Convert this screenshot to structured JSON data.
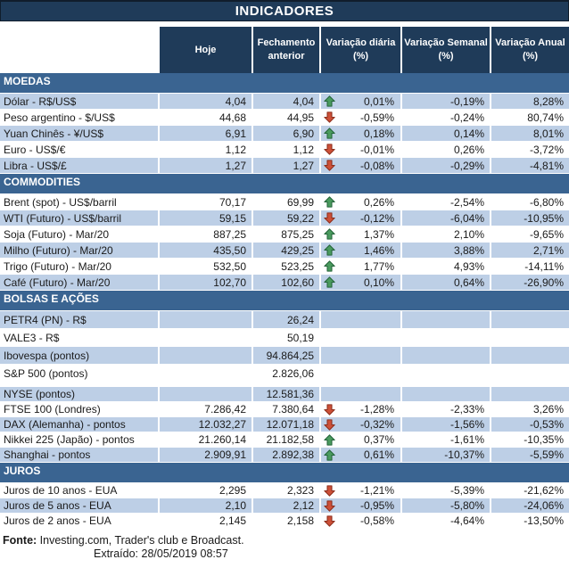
{
  "title": "INDICADORES",
  "columns": [
    "Hoje",
    "Fechamento anterior",
    "Variação diária (%)",
    "Variação Semanal (%)",
    "Variação Anual (%)"
  ],
  "colors": {
    "header_navy": "#1f3b59",
    "section_band_blue": "#3a6491",
    "row_stripe_blue": "#bdcfe6",
    "up_arrow_green": "#4a9b5e",
    "down_arrow_red": "#cd5038"
  },
  "sections": [
    {
      "label": "MOEDAS",
      "rows": [
        {
          "label": "Dólar - R$/US$",
          "hoje": "4,04",
          "fech": "4,04",
          "arrow": "up",
          "dia": "0,01%",
          "sem": "-0,19%",
          "anu": "8,28%",
          "shade": true
        },
        {
          "label": "Peso argentino - $/US$",
          "hoje": "44,68",
          "fech": "44,95",
          "arrow": "down",
          "dia": "-0,59%",
          "sem": "-0,24%",
          "anu": "80,74%",
          "shade": false
        },
        {
          "label": "Yuan Chinês - ¥/US$",
          "hoje": "6,91",
          "fech": "6,90",
          "arrow": "up",
          "dia": "0,18%",
          "sem": "0,14%",
          "anu": "8,01%",
          "shade": true
        },
        {
          "label": "Euro - US$/€",
          "hoje": "1,12",
          "fech": "1,12",
          "arrow": "down",
          "dia": "-0,01%",
          "sem": "0,26%",
          "anu": "-3,72%",
          "shade": false
        },
        {
          "label": "Libra - US$/£",
          "hoje": "1,27",
          "fech": "1,27",
          "arrow": "down",
          "dia": "-0,08%",
          "sem": "-0,29%",
          "anu": "-4,81%",
          "shade": true
        }
      ]
    },
    {
      "label": "COMMODITIES",
      "rows": [
        {
          "label": "Brent (spot) - US$/barril",
          "hoje": "70,17",
          "fech": "69,99",
          "arrow": "up",
          "dia": "0,26%",
          "sem": "-2,54%",
          "anu": "-6,80%",
          "shade": false
        },
        {
          "label": "WTI (Futuro) - US$/barril",
          "hoje": "59,15",
          "fech": "59,22",
          "arrow": "down",
          "dia": "-0,12%",
          "sem": "-6,04%",
          "anu": "-10,95%",
          "shade": true
        },
        {
          "label": "Soja (Futuro) - Mar/20",
          "hoje": "887,25",
          "fech": "875,25",
          "arrow": "up",
          "dia": "1,37%",
          "sem": "2,10%",
          "anu": "-9,65%",
          "shade": false
        },
        {
          "label": "Milho (Futuro) - Mar/20",
          "hoje": "435,50",
          "fech": "429,25",
          "arrow": "up",
          "dia": "1,46%",
          "sem": "3,88%",
          "anu": "2,71%",
          "shade": true
        },
        {
          "label": "Trigo (Futuro) - Mar/20",
          "hoje": "532,50",
          "fech": "523,25",
          "arrow": "up",
          "dia": "1,77%",
          "sem": "4,93%",
          "anu": "-14,11%",
          "shade": false
        },
        {
          "label": "Café (Futuro) - Mar/20",
          "hoje": "102,70",
          "fech": "102,60",
          "arrow": "up",
          "dia": "0,10%",
          "sem": "0,64%",
          "anu": "-26,90%",
          "shade": true
        }
      ]
    },
    {
      "label": "BOLSAS E AÇÕES",
      "rows": [
        {
          "label": "PETR4 (PN) - R$",
          "hoje": "",
          "fech": "26,24",
          "arrow": "",
          "dia": "",
          "sem": "",
          "anu": "",
          "shade": true,
          "tall": true
        },
        {
          "label": "VALE3 - R$",
          "hoje": "",
          "fech": "50,19",
          "arrow": "",
          "dia": "",
          "sem": "",
          "anu": "",
          "shade": false,
          "tall": true
        },
        {
          "label": "Ibovespa (pontos)",
          "hoje": "",
          "fech": "94.864,25",
          "arrow": "",
          "dia": "",
          "sem": "",
          "anu": "",
          "shade": true,
          "tall": true
        },
        {
          "label": "S&P 500 (pontos)",
          "hoje": "",
          "fech": "2.826,06",
          "arrow": "",
          "dia": "",
          "sem": "",
          "anu": "",
          "shade": false,
          "tall": true,
          "gap_below": true
        },
        {
          "label": "NYSE (pontos)",
          "hoje": "",
          "fech": "12.581,36",
          "arrow": "",
          "dia": "",
          "sem": "",
          "anu": "",
          "shade": true,
          "compact": true
        },
        {
          "label": "FTSE 100 (Londres)",
          "hoje": "7.286,42",
          "fech": "7.380,64",
          "arrow": "down",
          "dia": "-1,28%",
          "sem": "-2,33%",
          "anu": "3,26%",
          "shade": false,
          "compact": true
        },
        {
          "label": "DAX (Alemanha) - pontos",
          "hoje": "12.032,27",
          "fech": "12.071,18",
          "arrow": "down",
          "dia": "-0,32%",
          "sem": "-1,56%",
          "anu": "-0,53%",
          "shade": true,
          "compact": true
        },
        {
          "label": "Nikkei 225 (Japão) - pontos",
          "hoje": "21.260,14",
          "fech": "21.182,58",
          "arrow": "up",
          "dia": "0,37%",
          "sem": "-1,61%",
          "anu": "-10,35%",
          "shade": false,
          "compact": true
        },
        {
          "label": "Shanghai - pontos",
          "hoje": "2.909,91",
          "fech": "2.892,38",
          "arrow": "up",
          "dia": "0,61%",
          "sem": "-10,37%",
          "anu": "-5,59%",
          "shade": true,
          "compact": true
        }
      ]
    },
    {
      "label": "JUROS",
      "rows": [
        {
          "label": "Juros de 10 anos - EUA",
          "hoje": "2,295",
          "fech": "2,323",
          "arrow": "down",
          "dia": "-1,21%",
          "sem": "-5,39%",
          "anu": "-21,62%",
          "shade": false,
          "compact": true
        },
        {
          "label": "Juros de 5 anos - EUA",
          "hoje": "2,10",
          "fech": "2,12",
          "arrow": "down",
          "dia": "-0,95%",
          "sem": "-5,80%",
          "anu": "-24,06%",
          "shade": true,
          "compact": true
        },
        {
          "label": "Juros de 2 anos - EUA",
          "hoje": "2,145",
          "fech": "2,158",
          "arrow": "down",
          "dia": "-0,58%",
          "sem": "-4,64%",
          "anu": "-13,50%",
          "shade": false,
          "compact": true
        }
      ]
    }
  ],
  "footer": {
    "fonte_label": "Fonte:",
    "fonte_text": " Investing.com, Trader's club e Broadcast.",
    "extraido": "Extraído: 28/05/2019 08:57"
  }
}
